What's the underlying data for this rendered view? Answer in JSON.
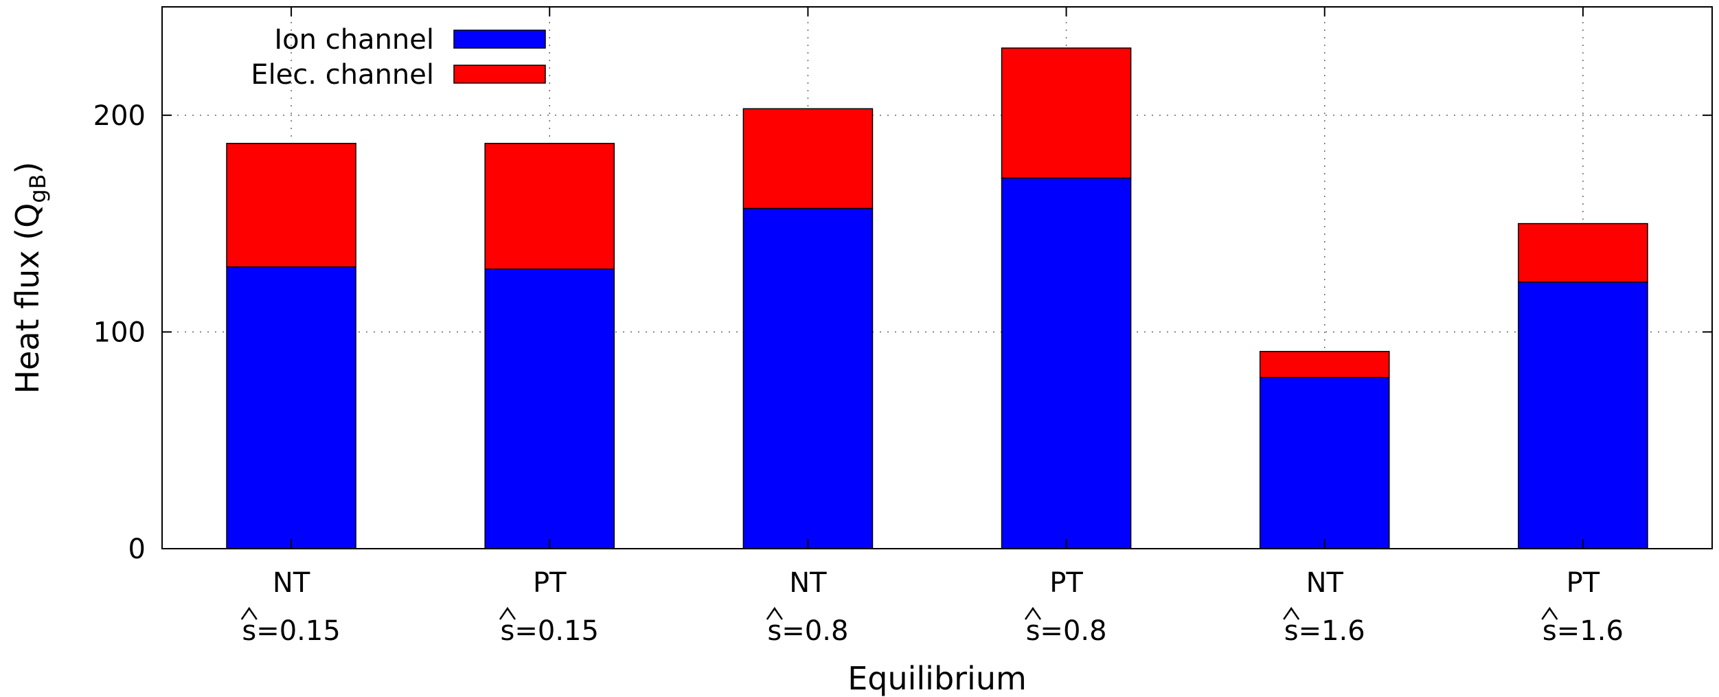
{
  "chart_data": {
    "type": "bar",
    "stacked": true,
    "categories": [
      {
        "line1": "NT",
        "s_value": "=0.15"
      },
      {
        "line1": "PT",
        "s_value": "=0.15"
      },
      {
        "line1": "NT",
        "s_value": "=0.8"
      },
      {
        "line1": "PT",
        "s_value": "=0.8"
      },
      {
        "line1": "NT",
        "s_value": "=1.6"
      },
      {
        "line1": "PT",
        "s_value": "=1.6"
      }
    ],
    "series": [
      {
        "name": "Ion channel",
        "color": "#0000ff",
        "values": [
          130,
          129,
          157,
          171,
          79,
          123
        ]
      },
      {
        "name": "Elec. channel",
        "color": "#ff0000",
        "values": [
          57,
          58,
          46,
          60,
          12,
          27
        ]
      }
    ],
    "xlabel": "Equilibrium",
    "ylabel": {
      "main": "Heat flux (Q",
      "subscript": "gB",
      "close": ")"
    },
    "ylim": [
      0,
      250
    ],
    "yticks": [
      0,
      100,
      200
    ],
    "grid": true,
    "legend_position": "top-left"
  }
}
